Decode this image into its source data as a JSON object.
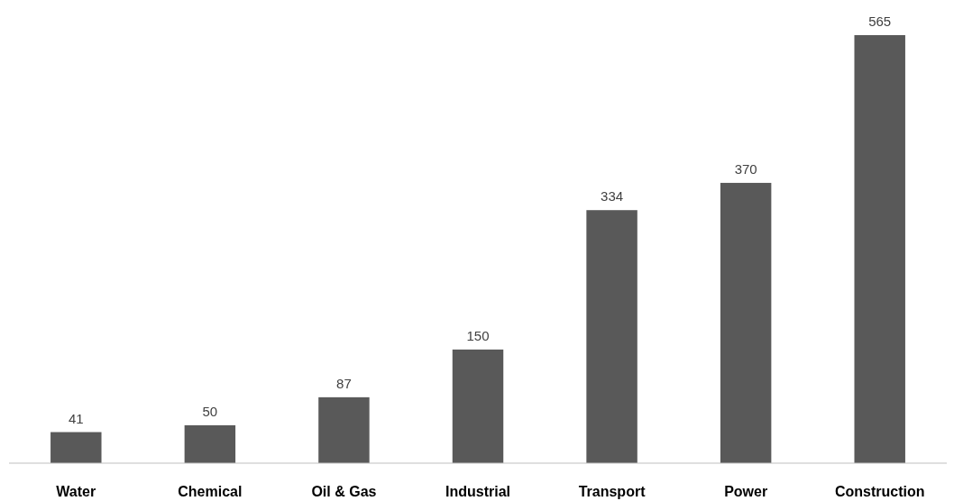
{
  "chart_data": {
    "type": "bar",
    "categories": [
      "Water",
      "Chemical",
      "Oil & Gas",
      "Industrial",
      "Transport",
      "Power",
      "Construction"
    ],
    "values": [
      41,
      50,
      87,
      150,
      334,
      370,
      565
    ],
    "color": "#595959",
    "data_labels": true
  }
}
